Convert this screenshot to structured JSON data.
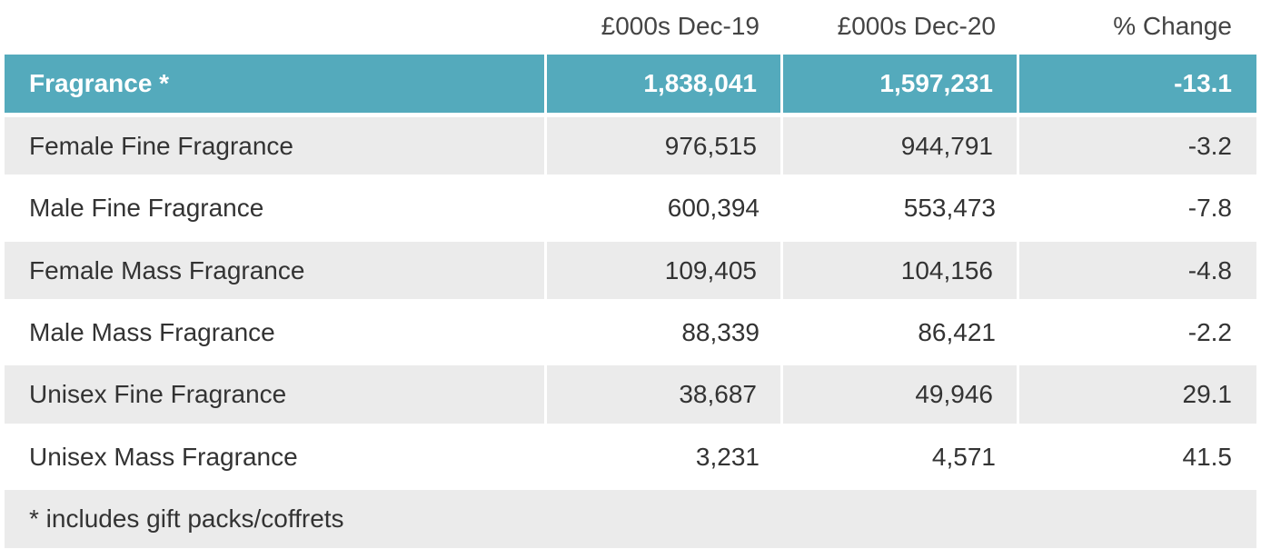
{
  "header": {
    "col1": "£000s Dec-19",
    "col2": "£000s Dec-20",
    "col3": "% Change"
  },
  "total": {
    "label": "Fragrance *",
    "dec19": "1,838,041",
    "dec20": "1,597,231",
    "change": "-13.1"
  },
  "rows": [
    {
      "label": "Female Fine Fragrance",
      "dec19": "976,515",
      "dec20": "944,791",
      "change": "-3.2"
    },
    {
      "label": "Male Fine Fragrance",
      "dec19": "600,394",
      "dec20": "553,473",
      "change": "-7.8"
    },
    {
      "label": "Female Mass Fragrance",
      "dec19": "109,405",
      "dec20": "104,156",
      "change": "-4.8"
    },
    {
      "label": "Male Mass Fragrance",
      "dec19": "88,339",
      "dec20": "86,421",
      "change": "-2.2"
    },
    {
      "label": "Unisex Fine Fragrance",
      "dec19": "38,687",
      "dec20": "49,946",
      "change": "29.1"
    },
    {
      "label": "Unisex Mass Fragrance",
      "dec19": "3,231",
      "dec20": "4,571",
      "change": "41.5"
    }
  ],
  "footnote": "* includes gift packs/coffrets",
  "colors": {
    "highlight": "#54aabc",
    "stripe": "#ebebeb",
    "text": "#333333"
  }
}
